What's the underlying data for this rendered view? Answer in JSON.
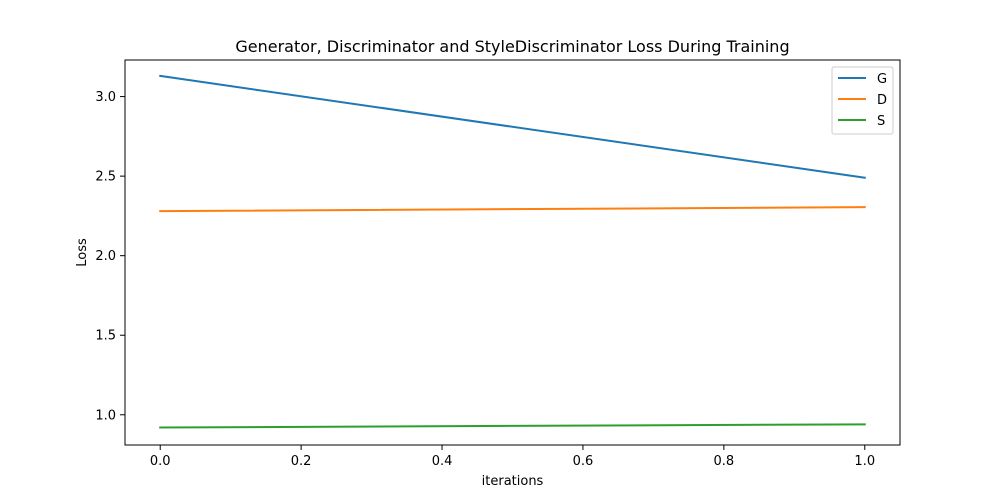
{
  "chart_data": {
    "type": "line",
    "title": "Generator, Discriminator and StyleDiscriminator Loss During Training",
    "xlabel": "iterations",
    "ylabel": "Loss",
    "xlim": [
      -0.05,
      1.05
    ],
    "ylim": [
      0.81,
      3.23
    ],
    "xticks": [
      0.0,
      0.2,
      0.4,
      0.6,
      0.8,
      1.0
    ],
    "xtick_labels": [
      "0.0",
      "0.2",
      "0.4",
      "0.6",
      "0.8",
      "1.0"
    ],
    "yticks": [
      1.0,
      1.5,
      2.0,
      2.5,
      3.0
    ],
    "ytick_labels": [
      "1.0",
      "1.5",
      "2.0",
      "2.5",
      "3.0"
    ],
    "grid": false,
    "legend_position": "top-right",
    "series": [
      {
        "name": "G",
        "color": "#1f77b4",
        "x": [
          0,
          1
        ],
        "y": [
          3.13,
          2.49
        ]
      },
      {
        "name": "D",
        "color": "#ff7f0e",
        "x": [
          0,
          1
        ],
        "y": [
          2.28,
          2.305
        ]
      },
      {
        "name": "S",
        "color": "#2ca02c",
        "x": [
          0,
          1
        ],
        "y": [
          0.92,
          0.94
        ]
      }
    ]
  }
}
